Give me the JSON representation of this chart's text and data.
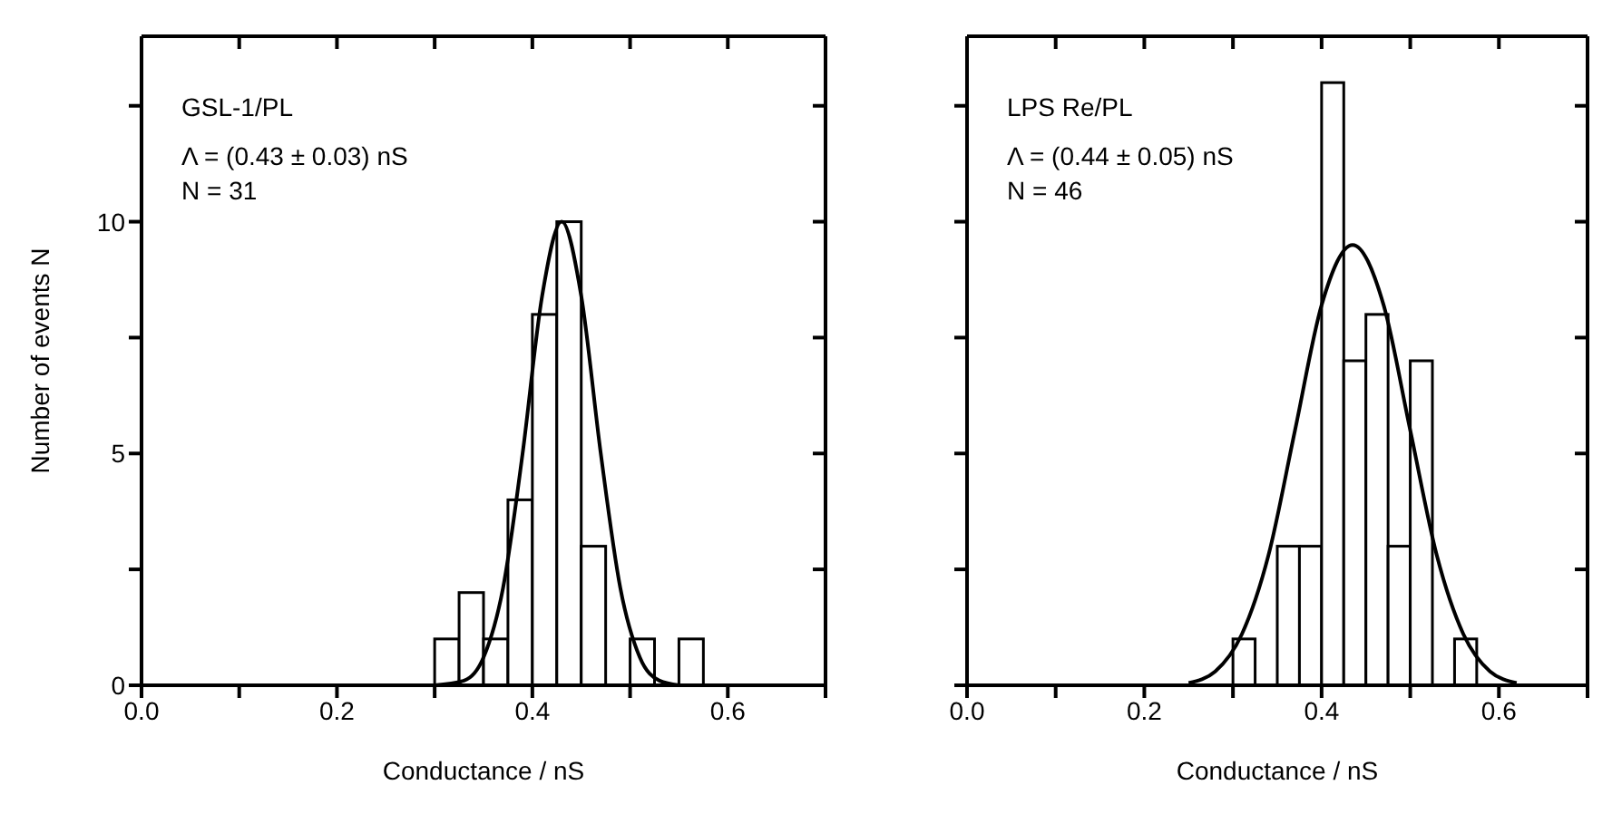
{
  "chart_data": [
    {
      "type": "histogram",
      "xlabel": "Conductance / nS",
      "ylabel": "Number of events N",
      "color": "#000000",
      "bins": [
        0.3,
        0.325,
        0.35,
        0.375,
        0.4,
        0.425,
        0.45,
        0.475,
        0.5,
        0.525,
        0.55,
        0.575
      ],
      "values": [
        1,
        2,
        1,
        4,
        8,
        10,
        3,
        0,
        1,
        0,
        1
      ],
      "series": [
        {
          "type": "line",
          "color": "#000000",
          "x": [
            0.3,
            0.33,
            0.35,
            0.37,
            0.39,
            0.41,
            0.43,
            0.45,
            0.47,
            0.49,
            0.51,
            0.53,
            0.55
          ],
          "values": [
            0,
            0.1,
            0.6,
            2.1,
            5.0,
            8.4,
            10,
            8.4,
            5.0,
            2.1,
            0.6,
            0.1,
            0
          ]
        }
      ],
      "annotations": [
        "GSL-1/PL",
        "Λ = (0.43 ± 0.03) nS",
        "N = 31"
      ],
      "xlim": [
        0,
        0.7
      ],
      "xticks": [
        {
          "value": 0,
          "label": "0.0"
        },
        {
          "value": 0.1,
          "label": null
        },
        0.2,
        {
          "value": 0.3,
          "label": null
        },
        0.4,
        {
          "value": 0.5,
          "label": null
        },
        0.6,
        {
          "value": 0.7,
          "label": null
        }
      ],
      "ylim": [
        0,
        14
      ],
      "yticks": [
        0,
        {
          "value": 2.5,
          "label": null
        },
        5,
        {
          "value": 7.5,
          "label": null
        },
        10,
        {
          "value": 12.5,
          "label": null
        }
      ],
      "legend": false,
      "grid": false
    },
    {
      "type": "histogram",
      "xlabel": "Conductance / nS",
      "color": "#000000",
      "bins": [
        0.3,
        0.325,
        0.35,
        0.375,
        0.4,
        0.425,
        0.45,
        0.475,
        0.5,
        0.525,
        0.55,
        0.575
      ],
      "values": [
        1,
        0,
        3,
        3,
        13,
        7,
        8,
        3,
        7,
        0,
        1
      ],
      "series": [
        {
          "type": "line",
          "color": "#000000",
          "x": [
            0.25,
            0.28,
            0.31,
            0.34,
            0.37,
            0.4,
            0.435,
            0.47,
            0.5,
            0.53,
            0.56,
            0.59,
            0.62
          ],
          "values": [
            0.05,
            0.3,
            1.1,
            2.8,
            5.5,
            8.2,
            9.5,
            8.2,
            5.5,
            2.8,
            1.1,
            0.3,
            0.05
          ]
        }
      ],
      "annotations": [
        "LPS Re/PL",
        "Λ = (0.44 ± 0.05) nS",
        "N = 46"
      ],
      "xlim": [
        0,
        0.7
      ],
      "xticks": [
        {
          "value": 0,
          "label": "0.0"
        },
        {
          "value": 0.1,
          "label": null
        },
        0.2,
        {
          "value": 0.3,
          "label": null
        },
        0.4,
        {
          "value": 0.5,
          "label": null
        },
        0.6,
        {
          "value": 0.7,
          "label": null
        }
      ],
      "ylim": [
        0,
        14
      ],
      "yticks": [
        0,
        {
          "value": 2.5,
          "label": null
        },
        5,
        {
          "value": 7.5,
          "label": null
        },
        10,
        {
          "value": 12.5,
          "label": null
        }
      ],
      "tick_labels": "x",
      "legend": false,
      "grid": false
    }
  ]
}
